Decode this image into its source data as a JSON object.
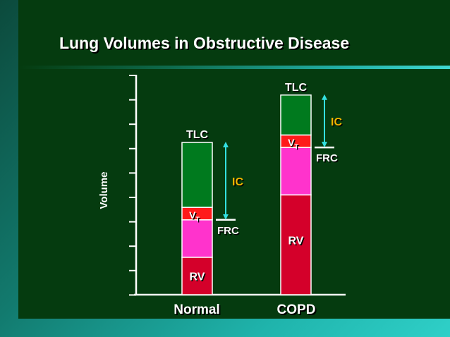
{
  "slide": {
    "title": "Lung Volumes in Obstructive Disease",
    "y_axis_label": "Volume",
    "x_labels": [
      "Normal",
      "COPD"
    ]
  },
  "bars": [
    {
      "name": "normal",
      "label": "Normal",
      "segments": [
        {
          "key": "rv",
          "label": "RV",
          "value": 1.5,
          "color": "#d4002a"
        },
        {
          "key": "erv",
          "label": "",
          "value": 1.5,
          "color": "#ff33cc"
        },
        {
          "key": "vt",
          "label": "V",
          "sub": "T",
          "value": 0.5,
          "color": "#ff1a1a"
        },
        {
          "key": "irv",
          "label": "",
          "value": 2.6,
          "color": "#007a1e"
        }
      ],
      "top_label": "TLC",
      "frc_label": "FRC",
      "ic_label": "IC"
    },
    {
      "name": "copd",
      "label": "COPD",
      "segments": [
        {
          "key": "rv",
          "label": "RV",
          "value": 4.0,
          "color": "#d4002a"
        },
        {
          "key": "erv",
          "label": "",
          "value": 1.9,
          "color": "#ff33cc"
        },
        {
          "key": "vt",
          "label": "V",
          "sub": "T",
          "value": 0.5,
          "color": "#ff1a1a"
        },
        {
          "key": "irv",
          "label": "",
          "value": 1.6,
          "color": "#007a1e"
        }
      ],
      "top_label": "TLC",
      "frc_label": "FRC",
      "ic_label": "IC"
    }
  ],
  "colors": {
    "ic_label": "#f2b600",
    "ic_arrow": "#33e0e0",
    "axis": "#ffffff",
    "label_shadow": "#000000"
  }
}
